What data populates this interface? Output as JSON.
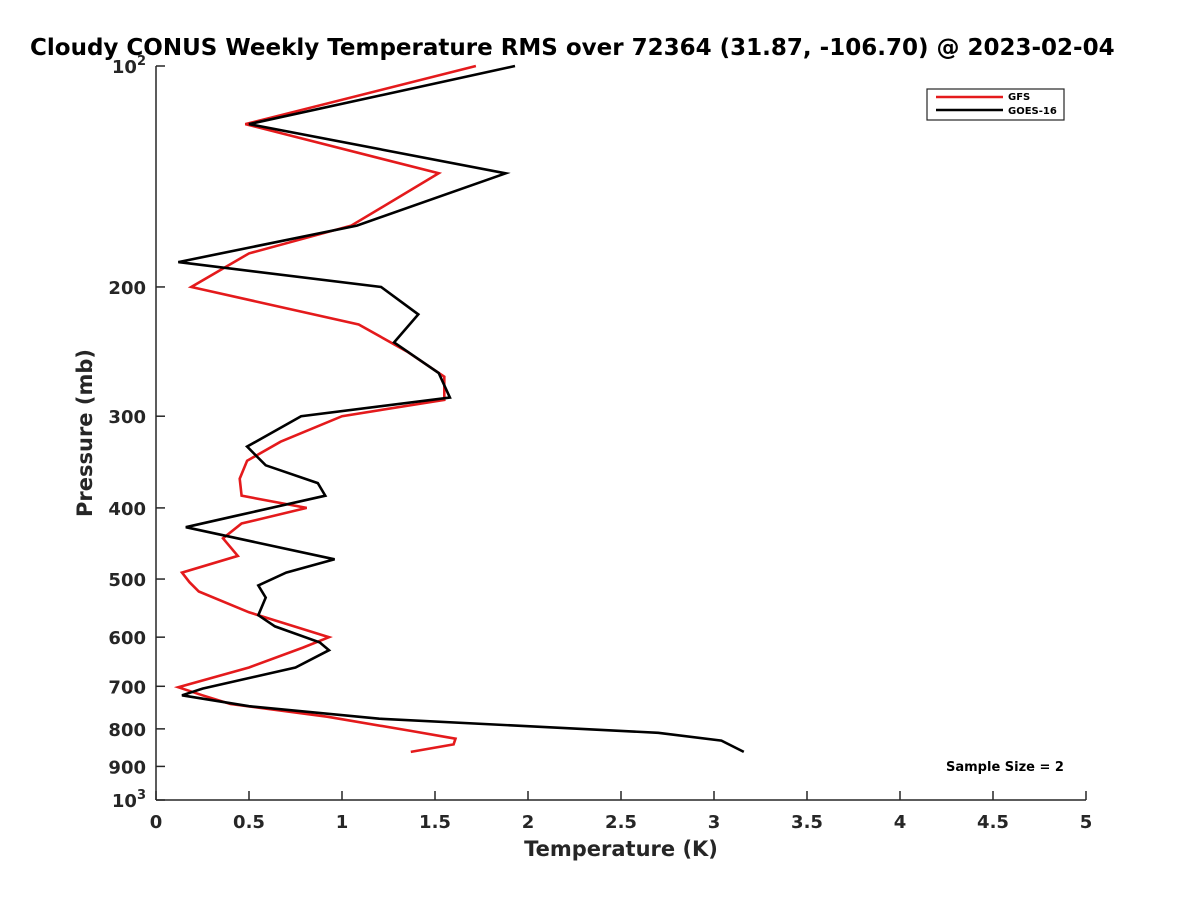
{
  "chart_data": {
    "type": "line",
    "title": "Cloudy CONUS Weekly Temperature RMS over 72364 (31.87, -106.70) @ 2023-02-04",
    "xlabel": "Temperature (K)",
    "ylabel": "Pressure (mb)",
    "xlim": [
      0,
      5
    ],
    "ylim": [
      100,
      1000
    ],
    "yscale": "log",
    "y_reversed": true,
    "grid": false,
    "legend_position": "top-right",
    "x_ticks": [
      0,
      0.5,
      1,
      1.5,
      2,
      2.5,
      3,
      3.5,
      4,
      4.5,
      5
    ],
    "x_tick_labels": [
      "0",
      "0.5",
      "1",
      "1.5",
      "2",
      "2.5",
      "3",
      "3.5",
      "4",
      "4.5",
      "5"
    ],
    "y_ticks": [
      {
        "value": 100,
        "base": "10",
        "exp": "2"
      },
      {
        "value": 200,
        "text": "200"
      },
      {
        "value": 300,
        "text": "300"
      },
      {
        "value": 400,
        "text": "400"
      },
      {
        "value": 500,
        "text": "500"
      },
      {
        "value": 600,
        "text": "600"
      },
      {
        "value": 700,
        "text": "700"
      },
      {
        "value": 800,
        "text": "800"
      },
      {
        "value": 900,
        "text": "900"
      },
      {
        "value": 1000,
        "base": "10",
        "exp": "3"
      }
    ],
    "series": [
      {
        "name": "GFS",
        "color": "#e41a1c",
        "points": [
          [
            1.72,
            100
          ],
          [
            0.48,
            120
          ],
          [
            1.52,
            140
          ],
          [
            1.05,
            165
          ],
          [
            0.5,
            180
          ],
          [
            0.19,
            200
          ],
          [
            1.09,
            225
          ],
          [
            1.35,
            245
          ],
          [
            1.55,
            265
          ],
          [
            1.55,
            285
          ],
          [
            1.0,
            300
          ],
          [
            0.67,
            325
          ],
          [
            0.49,
            345
          ],
          [
            0.45,
            365
          ],
          [
            0.46,
            385
          ],
          [
            0.81,
            400
          ],
          [
            0.46,
            420
          ],
          [
            0.36,
            440
          ],
          [
            0.44,
            465
          ],
          [
            0.14,
            490
          ],
          [
            0.18,
            505
          ],
          [
            0.23,
            520
          ],
          [
            0.5,
            555
          ],
          [
            0.93,
            600
          ],
          [
            0.79,
            620
          ],
          [
            0.5,
            660
          ],
          [
            0.12,
            702
          ],
          [
            0.25,
            720
          ],
          [
            0.4,
            740
          ],
          [
            0.92,
            770
          ],
          [
            1.37,
            805
          ],
          [
            1.61,
            825
          ],
          [
            1.6,
            840
          ],
          [
            1.37,
            860
          ]
        ]
      },
      {
        "name": "GOES-16",
        "color": "#000000",
        "points": [
          [
            1.93,
            100
          ],
          [
            0.5,
            120
          ],
          [
            1.88,
            140
          ],
          [
            1.08,
            165
          ],
          [
            0.12,
            185
          ],
          [
            1.21,
            200
          ],
          [
            1.41,
            218
          ],
          [
            1.28,
            238
          ],
          [
            1.52,
            262
          ],
          [
            1.58,
            283
          ],
          [
            0.78,
            300
          ],
          [
            0.49,
            330
          ],
          [
            0.59,
            350
          ],
          [
            0.87,
            370
          ],
          [
            0.91,
            385
          ],
          [
            0.43,
            410
          ],
          [
            0.16,
            425
          ],
          [
            0.96,
            470
          ],
          [
            0.7,
            490
          ],
          [
            0.55,
            510
          ],
          [
            0.59,
            530
          ],
          [
            0.55,
            560
          ],
          [
            0.64,
            580
          ],
          [
            0.88,
            610
          ],
          [
            0.93,
            625
          ],
          [
            0.75,
            660
          ],
          [
            0.25,
            705
          ],
          [
            0.14,
            720
          ],
          [
            0.5,
            745
          ],
          [
            1.2,
            775
          ],
          [
            2.7,
            810
          ],
          [
            3.04,
            830
          ],
          [
            3.16,
            860
          ]
        ]
      }
    ],
    "annotation": "Sample Size = 2"
  }
}
